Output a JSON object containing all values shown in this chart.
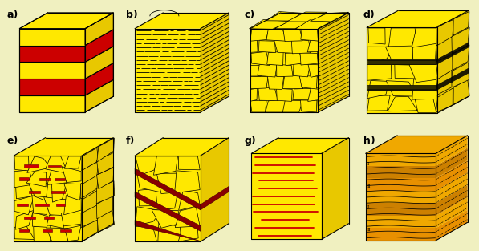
{
  "bg_color": "#f0f0c0",
  "yellow": "#FFE800",
  "yellow_dark": "#E8C800",
  "yellow_side": "#D4B400",
  "red": "#CC0000",
  "dark_red": "#880000",
  "orange1": "#E8A000",
  "orange2": "#CC8800",
  "black": "#000000",
  "label_fontsize": 9,
  "labels": [
    "a)",
    "b)",
    "c)",
    "d)",
    "e)",
    "f)",
    "g)",
    "h)"
  ]
}
